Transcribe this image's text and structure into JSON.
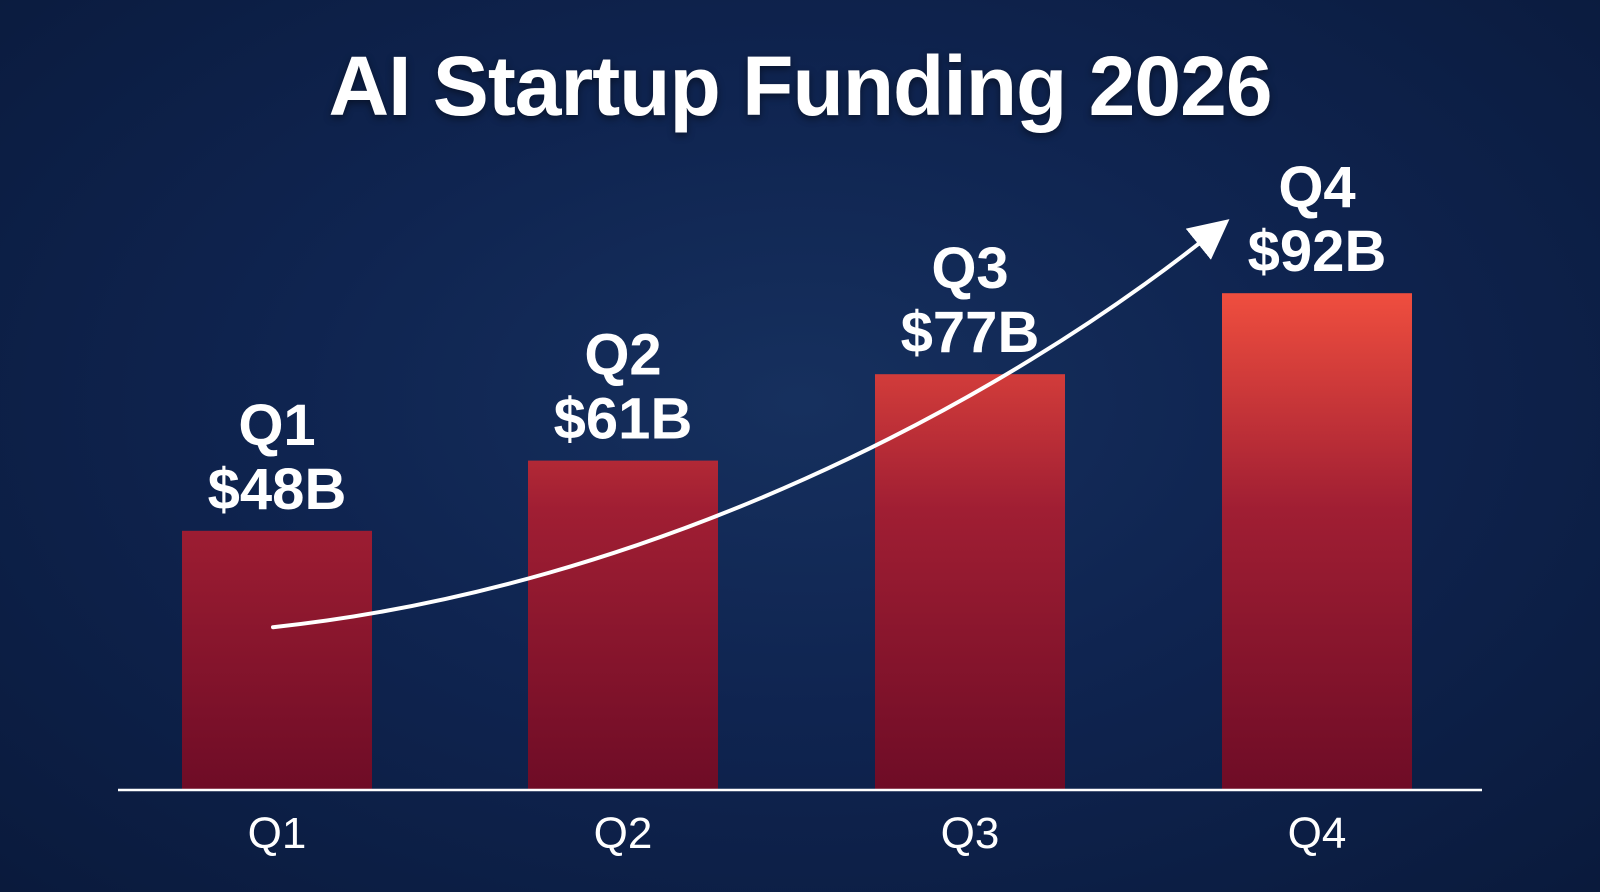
{
  "title": "AI Startup Funding 2026",
  "colors": {
    "background": "#0e2148",
    "bar_dark": "#6e0c26",
    "bar_light": "#f4513f",
    "axis": "#ffffff",
    "text": "#ffffff",
    "trend_arrow": "#ffffff"
  },
  "chart_data": {
    "type": "bar",
    "title": "AI Startup Funding 2026",
    "categories": [
      "Q1",
      "Q2",
      "Q3",
      "Q4"
    ],
    "values": [
      48,
      61,
      77,
      92
    ],
    "data_labels": [
      {
        "quarter": "Q1",
        "amount": "$48B"
      },
      {
        "quarter": "Q2",
        "amount": "$61B"
      },
      {
        "quarter": "Q3",
        "amount": "$77B"
      },
      {
        "quarter": "Q4",
        "amount": "$92B"
      }
    ],
    "xlabel": "",
    "ylabel": "",
    "ylim": [
      0,
      100
    ],
    "grid": false,
    "legend": "none",
    "trend_arrow": true
  }
}
